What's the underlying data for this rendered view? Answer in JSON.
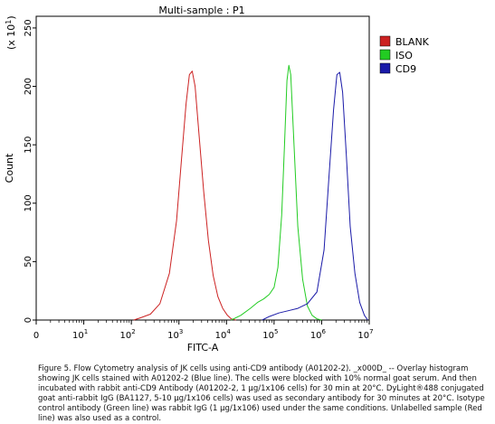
{
  "chart_data": {
    "type": "line",
    "title": "Multi-sample : P1",
    "xlabel": "FITC-A",
    "ylabel": "Count",
    "y_multiplier": "(x 10",
    "y_multiplier_exp": "1",
    "xscale": "log",
    "xlim": [
      0,
      7
    ],
    "ylim": [
      0,
      260
    ],
    "x_tick_values": [
      0,
      1,
      2,
      3,
      4,
      5,
      6,
      7
    ],
    "x_tick_labels": [
      {
        "base": "0",
        "exp": ""
      },
      {
        "base": "10",
        "exp": "1"
      },
      {
        "base": "10",
        "exp": "2"
      },
      {
        "base": "10",
        "exp": "3"
      },
      {
        "base": "10",
        "exp": "4"
      },
      {
        "base": "10",
        "exp": "5"
      },
      {
        "base": "10",
        "exp": "6"
      },
      {
        "base": "10",
        "exp": "7"
      }
    ],
    "y_ticks": [
      0,
      50,
      100,
      150,
      200,
      250
    ],
    "y_tick_labels": [
      "0",
      "50",
      "100",
      "150",
      "200",
      "250"
    ],
    "legend_position": "top-right",
    "series": [
      {
        "name": "BLANK",
        "color": "#cc2222",
        "x": [
          2.05,
          2.2,
          2.4,
          2.6,
          2.8,
          2.95,
          3.05,
          3.15,
          3.22,
          3.28,
          3.34,
          3.42,
          3.52,
          3.62,
          3.72,
          3.82,
          3.92,
          4.02,
          4.1,
          4.2
        ],
        "y": [
          0,
          2,
          5,
          14,
          40,
          85,
          135,
          185,
          210,
          213,
          200,
          160,
          110,
          68,
          38,
          20,
          10,
          4,
          1,
          0
        ]
      },
      {
        "name": "ISO",
        "color": "#22cc22",
        "x": [
          4.1,
          4.3,
          4.5,
          4.65,
          4.78,
          4.9,
          5.0,
          5.08,
          5.16,
          5.22,
          5.27,
          5.31,
          5.35,
          5.42,
          5.5,
          5.6,
          5.7,
          5.8,
          5.9,
          6.0
        ],
        "y": [
          0,
          4,
          10,
          15,
          18,
          22,
          28,
          45,
          90,
          150,
          205,
          218,
          210,
          150,
          80,
          35,
          12,
          4,
          1,
          0
        ]
      },
      {
        "name": "CD9",
        "color": "#1a1aa8",
        "x": [
          4.75,
          4.9,
          5.1,
          5.3,
          5.5,
          5.7,
          5.9,
          6.05,
          6.15,
          6.25,
          6.32,
          6.38,
          6.44,
          6.52,
          6.6,
          6.7,
          6.8,
          6.9,
          6.97
        ],
        "y": [
          0,
          3,
          6,
          8,
          10,
          14,
          24,
          60,
          120,
          180,
          210,
          212,
          195,
          140,
          80,
          40,
          15,
          4,
          0
        ]
      }
    ]
  },
  "caption": "Figure 5. Flow Cytometry analysis of JK cells using anti-CD9 antibody (A01202-2). _x000D_ -- Overlay histogram showing JK cells stained with A01202-2 (Blue line). The cells were blocked with 10% normal goat serum. And then incubated with rabbit anti-CD9 Antibody (A01202-2, 1 µg/1x106 cells) for 30 min at 20°C. DyLight®488 conjugated goat anti-rabbit IgG (BA1127, 5-10 µg/1x106 cells) was used as secondary antibody for 30 minutes at 20°C. Isotype control antibody (Green line) was rabbit IgG (1 µg/1x106) used under the same conditions. Unlabelled sample (Red line) was also used as a control."
}
